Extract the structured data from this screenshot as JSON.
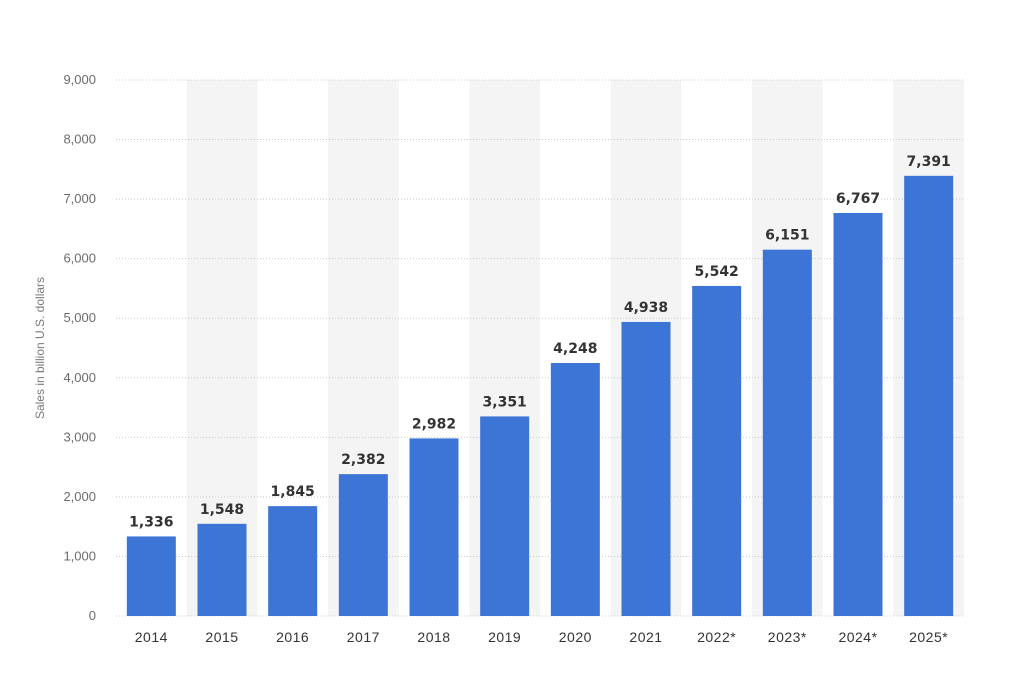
{
  "chart_data": {
    "type": "bar",
    "categories": [
      "2014",
      "2015",
      "2016",
      "2017",
      "2018",
      "2019",
      "2020",
      "2021",
      "2022*",
      "2023*",
      "2024*",
      "2025*"
    ],
    "values": [
      1336,
      1548,
      1845,
      2382,
      2982,
      3351,
      4248,
      4938,
      5542,
      6151,
      6767,
      7391
    ],
    "data_labels": [
      "1,336",
      "1,548",
      "1,845",
      "2,382",
      "2,982",
      "3,351",
      "4,248",
      "4,938",
      "5,542",
      "6,151",
      "6,767",
      "7,391"
    ],
    "y_ticks": [
      0,
      1000,
      2000,
      3000,
      4000,
      5000,
      6000,
      7000,
      8000,
      9000
    ],
    "y_tick_labels": [
      "0",
      "1,000",
      "2,000",
      "3,000",
      "4,000",
      "5,000",
      "6,000",
      "7,000",
      "8,000",
      "9,000"
    ],
    "title": "",
    "xlabel": "",
    "ylabel": "Sales in billion U.S. dollars",
    "ylim": [
      0,
      9000
    ],
    "grid": true,
    "colors": {
      "bar": "#3d75d6",
      "grid": "#c9c9c9",
      "band": "#f4f4f4"
    }
  }
}
